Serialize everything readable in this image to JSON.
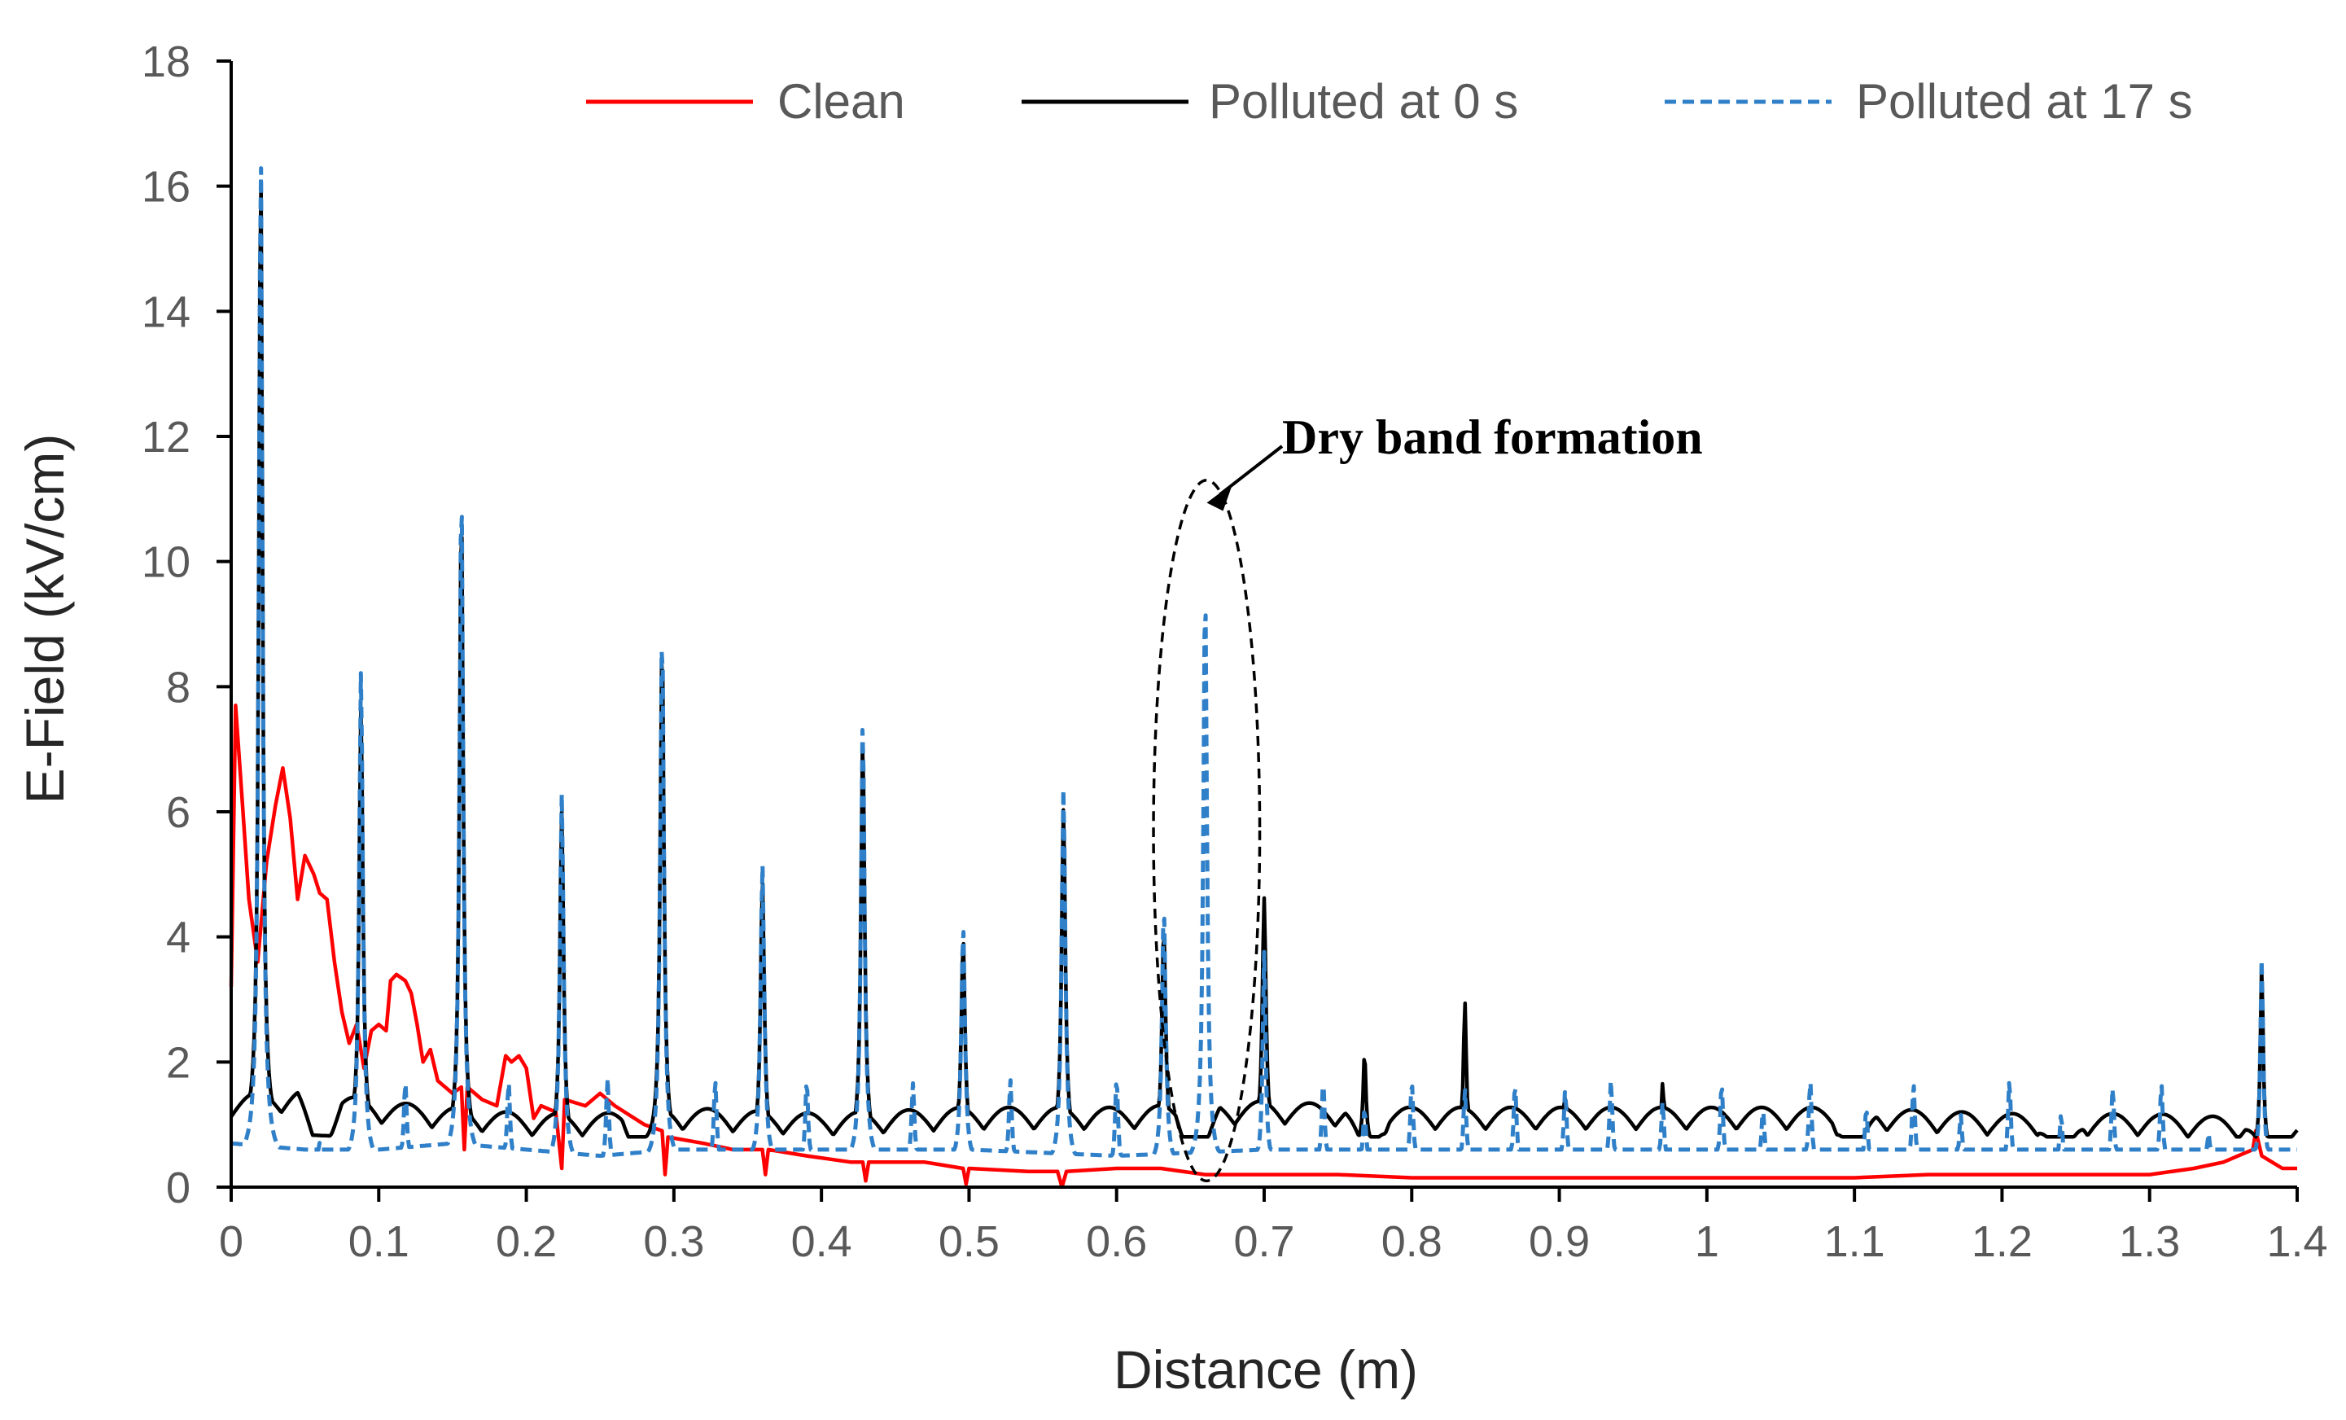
{
  "chart_data": {
    "type": "line",
    "title": "",
    "xlabel": "Distance (m)",
    "ylabel": "E-Field (kV/cm)",
    "xlim": [
      0,
      1.4
    ],
    "ylim": [
      0,
      18
    ],
    "xticks": [
      0,
      0.1,
      0.2,
      0.3,
      0.4,
      0.5,
      0.6,
      0.7,
      0.8,
      0.9,
      1.0,
      1.1,
      1.2,
      1.3,
      1.4
    ],
    "xtick_labels": [
      "0",
      "0.1",
      "0.2",
      "0.3",
      "0.4",
      "0.5",
      "0.6",
      "0.7",
      "0.8",
      "0.9",
      "1",
      "1.1",
      "1.2",
      "1.3",
      "1.4"
    ],
    "yticks": [
      0,
      2,
      4,
      6,
      8,
      10,
      12,
      14,
      16,
      18
    ],
    "ytick_labels": [
      "0",
      "2",
      "4",
      "6",
      "8",
      "10",
      "12",
      "14",
      "16",
      "18"
    ],
    "grid": false,
    "legend_position": "top",
    "series": [
      {
        "name": "Clean",
        "color": "#ff0000",
        "dash": "solid",
        "points": [
          [
            0,
            3.2
          ],
          [
            0.003,
            7.7
          ],
          [
            0.008,
            6.0
          ],
          [
            0.012,
            4.6
          ],
          [
            0.018,
            3.6
          ],
          [
            0.024,
            5.2
          ],
          [
            0.03,
            6.1
          ],
          [
            0.035,
            6.7
          ],
          [
            0.04,
            5.9
          ],
          [
            0.045,
            4.6
          ],
          [
            0.05,
            5.3
          ],
          [
            0.056,
            5.0
          ],
          [
            0.06,
            4.7
          ],
          [
            0.065,
            4.6
          ],
          [
            0.07,
            3.6
          ],
          [
            0.075,
            2.8
          ],
          [
            0.08,
            2.3
          ],
          [
            0.085,
            2.6
          ],
          [
            0.09,
            1.9
          ],
          [
            0.095,
            2.5
          ],
          [
            0.1,
            2.6
          ],
          [
            0.105,
            2.5
          ],
          [
            0.108,
            3.3
          ],
          [
            0.112,
            3.4
          ],
          [
            0.118,
            3.3
          ],
          [
            0.122,
            3.1
          ],
          [
            0.126,
            2.6
          ],
          [
            0.13,
            2.0
          ],
          [
            0.135,
            2.2
          ],
          [
            0.14,
            1.7
          ],
          [
            0.15,
            1.5
          ],
          [
            0.156,
            1.6
          ],
          [
            0.158,
            0.6
          ],
          [
            0.16,
            1.6
          ],
          [
            0.17,
            1.4
          ],
          [
            0.18,
            1.3
          ],
          [
            0.186,
            2.1
          ],
          [
            0.19,
            2.0
          ],
          [
            0.195,
            2.1
          ],
          [
            0.2,
            1.9
          ],
          [
            0.205,
            1.1
          ],
          [
            0.21,
            1.3
          ],
          [
            0.22,
            1.2
          ],
          [
            0.224,
            0.3
          ],
          [
            0.226,
            1.4
          ],
          [
            0.24,
            1.3
          ],
          [
            0.25,
            1.5
          ],
          [
            0.26,
            1.3
          ],
          [
            0.28,
            1.0
          ],
          [
            0.292,
            0.9
          ],
          [
            0.294,
            0.2
          ],
          [
            0.296,
            0.8
          ],
          [
            0.32,
            0.7
          ],
          [
            0.34,
            0.6
          ],
          [
            0.36,
            0.6
          ],
          [
            0.362,
            0.2
          ],
          [
            0.364,
            0.6
          ],
          [
            0.39,
            0.5
          ],
          [
            0.42,
            0.4
          ],
          [
            0.428,
            0.4
          ],
          [
            0.43,
            0.1
          ],
          [
            0.432,
            0.4
          ],
          [
            0.47,
            0.4
          ],
          [
            0.496,
            0.3
          ],
          [
            0.498,
            0.05
          ],
          [
            0.5,
            0.3
          ],
          [
            0.54,
            0.25
          ],
          [
            0.56,
            0.25
          ],
          [
            0.563,
            0.0
          ],
          [
            0.566,
            0.25
          ],
          [
            0.6,
            0.3
          ],
          [
            0.62,
            0.3
          ],
          [
            0.63,
            0.3
          ],
          [
            0.66,
            0.2
          ],
          [
            0.7,
            0.2
          ],
          [
            0.75,
            0.2
          ],
          [
            0.8,
            0.15
          ],
          [
            0.85,
            0.15
          ],
          [
            0.9,
            0.15
          ],
          [
            0.95,
            0.15
          ],
          [
            1.0,
            0.15
          ],
          [
            1.05,
            0.15
          ],
          [
            1.1,
            0.15
          ],
          [
            1.15,
            0.2
          ],
          [
            1.2,
            0.2
          ],
          [
            1.25,
            0.2
          ],
          [
            1.3,
            0.2
          ],
          [
            1.33,
            0.3
          ],
          [
            1.35,
            0.4
          ],
          [
            1.36,
            0.5
          ],
          [
            1.37,
            0.6
          ],
          [
            1.372,
            0.9
          ],
          [
            1.376,
            0.5
          ],
          [
            1.39,
            0.3
          ],
          [
            1.4,
            0.3
          ]
        ]
      },
      {
        "name": "Polluted at 0 s",
        "color": "#000000",
        "dash": "solid",
        "baseline": [
          [
            0,
            1.3
          ],
          [
            0.05,
            1.4
          ],
          [
            0.1,
            1.2
          ],
          [
            0.15,
            1.1
          ],
          [
            0.2,
            1.0
          ],
          [
            0.25,
            1.0
          ],
          [
            0.3,
            1.1
          ],
          [
            0.4,
            1.0
          ],
          [
            0.5,
            1.1
          ],
          [
            0.6,
            1.1
          ],
          [
            0.7,
            1.2
          ],
          [
            0.8,
            1.1
          ],
          [
            0.9,
            1.1
          ],
          [
            1.0,
            1.1
          ],
          [
            1.1,
            1.1
          ],
          [
            1.2,
            1.0
          ],
          [
            1.3,
            1.0
          ],
          [
            1.4,
            0.9
          ]
        ],
        "ripple_amplitude": 0.35,
        "ripple_period": 0.034,
        "peaks": [
          [
            0.02,
            16.9
          ],
          [
            0.088,
            8.2
          ],
          [
            0.156,
            11.3
          ],
          [
            0.224,
            6.4
          ],
          [
            0.292,
            9.2
          ],
          [
            0.36,
            5.3
          ],
          [
            0.428,
            7.6
          ],
          [
            0.496,
            4.4
          ],
          [
            0.564,
            6.5
          ],
          [
            0.632,
            4.6
          ],
          [
            0.7,
            5.1
          ],
          [
            0.768,
            2.6
          ],
          [
            0.836,
            3.4
          ],
          [
            0.904,
            1.9
          ],
          [
            0.97,
            2.1
          ],
          [
            1.038,
            1.3
          ],
          [
            1.108,
            1.4
          ],
          [
            1.172,
            1.4
          ],
          [
            1.24,
            1.3
          ],
          [
            1.308,
            1.4
          ],
          [
            1.376,
            3.9
          ]
        ],
        "dips": [
          [
            0.06,
            0.5
          ],
          [
            0.28,
            0.4
          ],
          [
            0.655,
            0.3
          ],
          [
            0.77,
            0.5
          ],
          [
            1.1,
            0.5
          ],
          [
            1.24,
            0.4
          ],
          [
            1.38,
            0.5
          ]
        ]
      },
      {
        "name": "Polluted at 17 s",
        "color": "#2f80c8",
        "dash": "dashed",
        "baseline": [
          [
            0,
            0.7
          ],
          [
            0.05,
            0.6
          ],
          [
            0.1,
            0.6
          ],
          [
            0.15,
            0.7
          ],
          [
            0.2,
            0.6
          ],
          [
            0.25,
            0.5
          ],
          [
            0.3,
            0.6
          ],
          [
            0.4,
            0.6
          ],
          [
            0.5,
            0.6
          ],
          [
            0.6,
            0.5
          ],
          [
            0.7,
            0.6
          ],
          [
            0.8,
            0.6
          ],
          [
            0.9,
            0.6
          ],
          [
            1.0,
            0.6
          ],
          [
            1.1,
            0.6
          ],
          [
            1.2,
            0.6
          ],
          [
            1.3,
            0.6
          ],
          [
            1.4,
            0.6
          ]
        ],
        "peaks": [
          [
            0.02,
            16.9
          ],
          [
            0.088,
            8.5
          ],
          [
            0.156,
            11.5
          ],
          [
            0.224,
            6.5
          ],
          [
            0.292,
            9.2
          ],
          [
            0.36,
            5.4
          ],
          [
            0.428,
            7.7
          ],
          [
            0.496,
            4.4
          ],
          [
            0.564,
            6.6
          ],
          [
            0.632,
            4.7
          ],
          [
            0.66,
            9.8
          ],
          [
            0.7,
            4.0
          ],
          [
            0.768,
            1.5
          ],
          [
            0.836,
            1.8
          ],
          [
            0.904,
            1.8
          ],
          [
            0.97,
            1.6
          ],
          [
            1.038,
            1.5
          ],
          [
            1.108,
            1.5
          ],
          [
            1.172,
            1.4
          ],
          [
            1.24,
            1.4
          ],
          [
            1.308,
            1.9
          ],
          [
            1.376,
            3.9
          ]
        ],
        "small_peaks": [
          [
            0.06,
            0.95
          ],
          [
            0.118,
            1.95
          ],
          [
            0.188,
            1.95
          ],
          [
            0.255,
            1.95
          ],
          [
            0.328,
            1.95
          ],
          [
            0.39,
            1.95
          ],
          [
            0.462,
            1.9
          ],
          [
            0.528,
            1.95
          ],
          [
            0.6,
            1.95
          ],
          [
            0.74,
            1.95
          ],
          [
            0.8,
            1.95
          ],
          [
            0.87,
            1.9
          ],
          [
            0.935,
            1.95
          ],
          [
            1.01,
            1.9
          ],
          [
            1.07,
            1.95
          ],
          [
            1.14,
            1.9
          ],
          [
            1.205,
            1.95
          ],
          [
            1.275,
            1.85
          ],
          [
            1.34,
            1.1
          ]
        ]
      }
    ],
    "annotations": [
      {
        "text": "Dry band formation",
        "target_x": 0.66,
        "target_y": 11.2,
        "ellipse_x": [
          0.625,
          0.697
        ],
        "ellipse_y": [
          0.1,
          11.3
        ]
      }
    ]
  }
}
